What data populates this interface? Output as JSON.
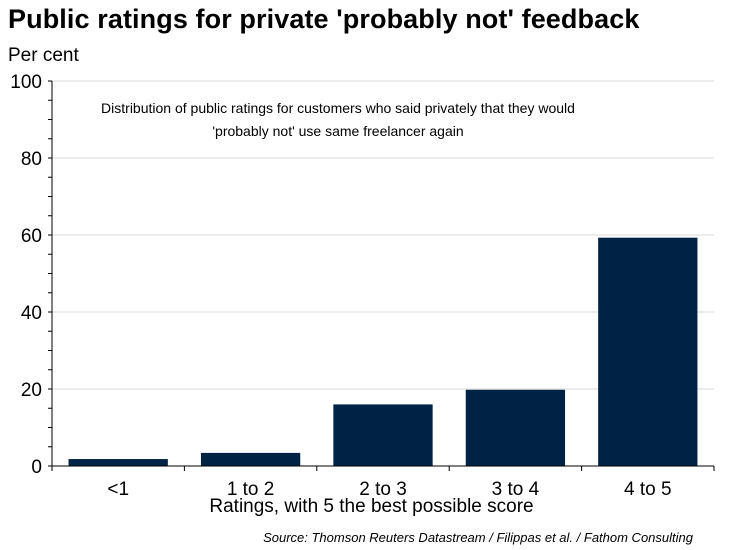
{
  "chart_data": {
    "type": "bar",
    "title": "Public ratings for private 'probably not' feedback",
    "unit_label": "Per cent",
    "xlabel": "Ratings, with 5 the best possible score",
    "ylabel": "",
    "categories": [
      "<1",
      "1 to 2",
      "2 to 3",
      "3 to 4",
      "4 to 5"
    ],
    "values": [
      1.8,
      3.4,
      16.0,
      19.8,
      59.3
    ],
    "ylim": [
      0,
      100
    ],
    "yticks": [
      0,
      20,
      40,
      60,
      80,
      100
    ],
    "grid": true,
    "bar_color": "#002244",
    "annotation": [
      "Distribution of public ratings for customers who said privately that they would",
      "'probably  not' use same freelancer again"
    ],
    "source": "Source: Thomson Reuters Datastream / Filippas et al. / Fathom Consulting"
  }
}
